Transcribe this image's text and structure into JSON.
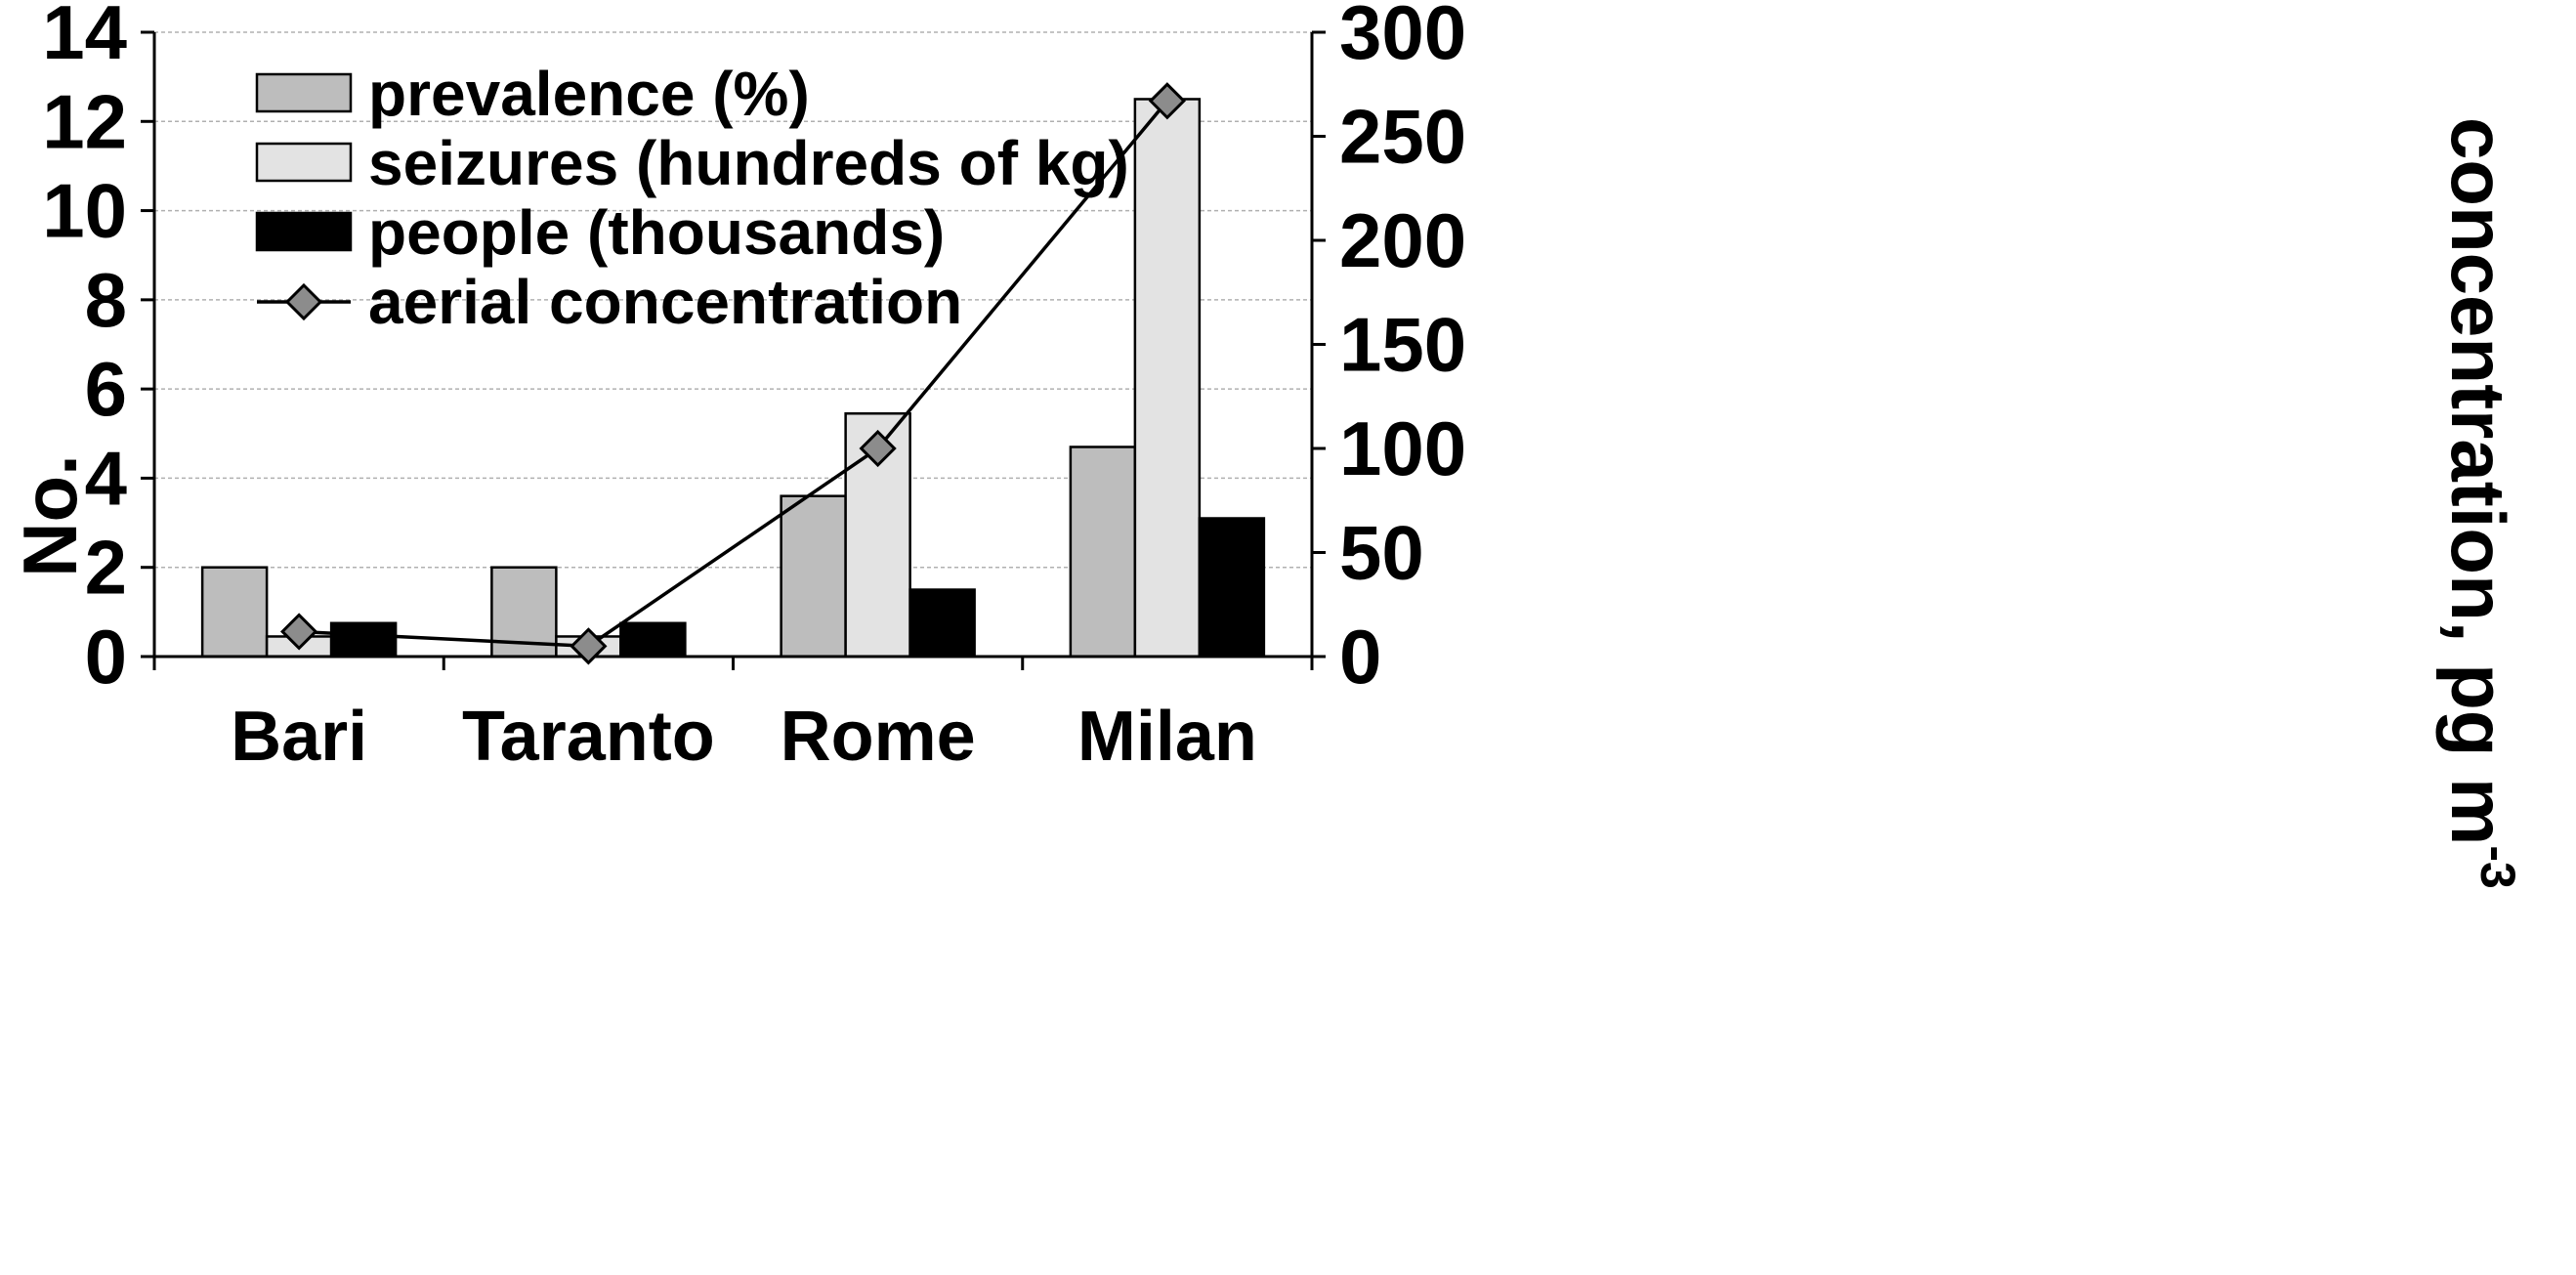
{
  "chart_data": {
    "type": "bar",
    "categories": [
      "Bari",
      "Taranto",
      "Rome",
      "Milan"
    ],
    "series": [
      {
        "name": "prevalence (%)",
        "type": "bar",
        "axis": "left",
        "color": "#bdbdbd",
        "values": [
          2.0,
          2.0,
          3.6,
          4.7
        ]
      },
      {
        "name": "seizures (hundreds of kg)",
        "type": "bar",
        "axis": "left",
        "color": "#e3e3e3",
        "values": [
          0.45,
          0.45,
          5.45,
          12.5
        ]
      },
      {
        "name": "people (thousands)",
        "type": "bar",
        "axis": "left",
        "color": "#000000",
        "values": [
          0.75,
          0.75,
          1.5,
          3.1
        ]
      },
      {
        "name": "aerial concentration",
        "type": "line",
        "axis": "right",
        "color": "#8c8c8c",
        "values": [
          12,
          5,
          100,
          267
        ]
      }
    ],
    "ylabel": "No.",
    "ylim": [
      0,
      14
    ],
    "yticks": [
      "0",
      "2",
      "4",
      "6",
      "8",
      "10",
      "12",
      "14"
    ],
    "y2label_main": "concentration, pg m",
    "y2label_sup": "-3",
    "y2lim": [
      0,
      300
    ],
    "y2ticks": [
      "0",
      "50",
      "100",
      "150",
      "200",
      "250",
      "300"
    ],
    "grid": true,
    "legend_position": "top-left"
  }
}
